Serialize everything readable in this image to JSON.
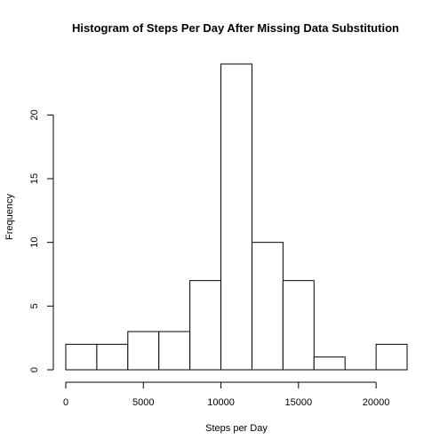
{
  "chart_data": {
    "type": "bar",
    "title": "Histogram of Steps Per Day After Missing Data Substitution",
    "xlabel": "Steps per Day",
    "ylabel": "Frequency",
    "bin_edges": [
      0,
      2000,
      4000,
      6000,
      8000,
      10000,
      12000,
      14000,
      16000,
      18000,
      20000,
      22000
    ],
    "values": [
      2,
      2,
      3,
      3,
      7,
      24,
      10,
      7,
      1,
      0,
      2
    ],
    "xlim": [
      0,
      22000
    ],
    "ylim": [
      0,
      24
    ],
    "x_ticks": [
      0,
      5000,
      10000,
      15000,
      20000
    ],
    "x_tick_labels": [
      "0",
      "5000",
      "10000",
      "15000",
      "20000"
    ],
    "y_ticks": [
      0,
      5,
      10,
      15,
      20
    ],
    "y_tick_labels": [
      "0",
      "5",
      "10",
      "15",
      "20"
    ],
    "bar_fill": "#ffffff",
    "bar_stroke": "#000000",
    "grid": false,
    "legend": "none"
  }
}
